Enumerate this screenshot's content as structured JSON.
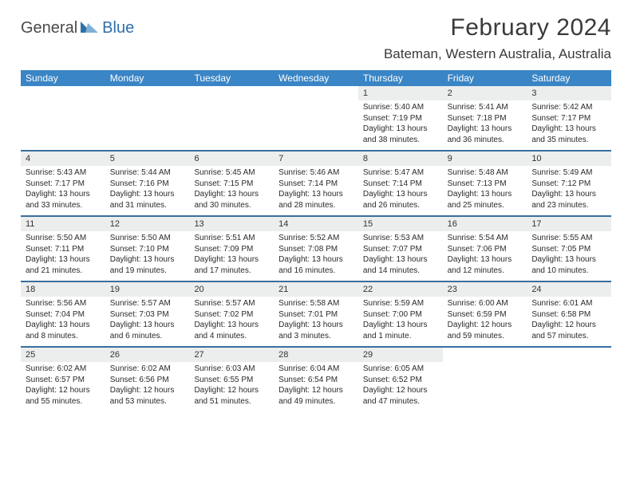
{
  "logo": {
    "text1": "General",
    "text2": "Blue"
  },
  "title": "February 2024",
  "location": "Bateman, Western Australia, Australia",
  "colors": {
    "header_bg": "#3a85c6",
    "header_text": "#ffffff",
    "daynum_bg": "#eceded",
    "week_border": "#3a6fa0",
    "logo_blue": "#2f6fa8"
  },
  "day_names": [
    "Sunday",
    "Monday",
    "Tuesday",
    "Wednesday",
    "Thursday",
    "Friday",
    "Saturday"
  ],
  "weeks": [
    [
      {
        "n": "",
        "sr": "",
        "ss": "",
        "dl": ""
      },
      {
        "n": "",
        "sr": "",
        "ss": "",
        "dl": ""
      },
      {
        "n": "",
        "sr": "",
        "ss": "",
        "dl": ""
      },
      {
        "n": "",
        "sr": "",
        "ss": "",
        "dl": ""
      },
      {
        "n": "1",
        "sr": "Sunrise: 5:40 AM",
        "ss": "Sunset: 7:19 PM",
        "dl": "Daylight: 13 hours and 38 minutes."
      },
      {
        "n": "2",
        "sr": "Sunrise: 5:41 AM",
        "ss": "Sunset: 7:18 PM",
        "dl": "Daylight: 13 hours and 36 minutes."
      },
      {
        "n": "3",
        "sr": "Sunrise: 5:42 AM",
        "ss": "Sunset: 7:17 PM",
        "dl": "Daylight: 13 hours and 35 minutes."
      }
    ],
    [
      {
        "n": "4",
        "sr": "Sunrise: 5:43 AM",
        "ss": "Sunset: 7:17 PM",
        "dl": "Daylight: 13 hours and 33 minutes."
      },
      {
        "n": "5",
        "sr": "Sunrise: 5:44 AM",
        "ss": "Sunset: 7:16 PM",
        "dl": "Daylight: 13 hours and 31 minutes."
      },
      {
        "n": "6",
        "sr": "Sunrise: 5:45 AM",
        "ss": "Sunset: 7:15 PM",
        "dl": "Daylight: 13 hours and 30 minutes."
      },
      {
        "n": "7",
        "sr": "Sunrise: 5:46 AM",
        "ss": "Sunset: 7:14 PM",
        "dl": "Daylight: 13 hours and 28 minutes."
      },
      {
        "n": "8",
        "sr": "Sunrise: 5:47 AM",
        "ss": "Sunset: 7:14 PM",
        "dl": "Daylight: 13 hours and 26 minutes."
      },
      {
        "n": "9",
        "sr": "Sunrise: 5:48 AM",
        "ss": "Sunset: 7:13 PM",
        "dl": "Daylight: 13 hours and 25 minutes."
      },
      {
        "n": "10",
        "sr": "Sunrise: 5:49 AM",
        "ss": "Sunset: 7:12 PM",
        "dl": "Daylight: 13 hours and 23 minutes."
      }
    ],
    [
      {
        "n": "11",
        "sr": "Sunrise: 5:50 AM",
        "ss": "Sunset: 7:11 PM",
        "dl": "Daylight: 13 hours and 21 minutes."
      },
      {
        "n": "12",
        "sr": "Sunrise: 5:50 AM",
        "ss": "Sunset: 7:10 PM",
        "dl": "Daylight: 13 hours and 19 minutes."
      },
      {
        "n": "13",
        "sr": "Sunrise: 5:51 AM",
        "ss": "Sunset: 7:09 PM",
        "dl": "Daylight: 13 hours and 17 minutes."
      },
      {
        "n": "14",
        "sr": "Sunrise: 5:52 AM",
        "ss": "Sunset: 7:08 PM",
        "dl": "Daylight: 13 hours and 16 minutes."
      },
      {
        "n": "15",
        "sr": "Sunrise: 5:53 AM",
        "ss": "Sunset: 7:07 PM",
        "dl": "Daylight: 13 hours and 14 minutes."
      },
      {
        "n": "16",
        "sr": "Sunrise: 5:54 AM",
        "ss": "Sunset: 7:06 PM",
        "dl": "Daylight: 13 hours and 12 minutes."
      },
      {
        "n": "17",
        "sr": "Sunrise: 5:55 AM",
        "ss": "Sunset: 7:05 PM",
        "dl": "Daylight: 13 hours and 10 minutes."
      }
    ],
    [
      {
        "n": "18",
        "sr": "Sunrise: 5:56 AM",
        "ss": "Sunset: 7:04 PM",
        "dl": "Daylight: 13 hours and 8 minutes."
      },
      {
        "n": "19",
        "sr": "Sunrise: 5:57 AM",
        "ss": "Sunset: 7:03 PM",
        "dl": "Daylight: 13 hours and 6 minutes."
      },
      {
        "n": "20",
        "sr": "Sunrise: 5:57 AM",
        "ss": "Sunset: 7:02 PM",
        "dl": "Daylight: 13 hours and 4 minutes."
      },
      {
        "n": "21",
        "sr": "Sunrise: 5:58 AM",
        "ss": "Sunset: 7:01 PM",
        "dl": "Daylight: 13 hours and 3 minutes."
      },
      {
        "n": "22",
        "sr": "Sunrise: 5:59 AM",
        "ss": "Sunset: 7:00 PM",
        "dl": "Daylight: 13 hours and 1 minute."
      },
      {
        "n": "23",
        "sr": "Sunrise: 6:00 AM",
        "ss": "Sunset: 6:59 PM",
        "dl": "Daylight: 12 hours and 59 minutes."
      },
      {
        "n": "24",
        "sr": "Sunrise: 6:01 AM",
        "ss": "Sunset: 6:58 PM",
        "dl": "Daylight: 12 hours and 57 minutes."
      }
    ],
    [
      {
        "n": "25",
        "sr": "Sunrise: 6:02 AM",
        "ss": "Sunset: 6:57 PM",
        "dl": "Daylight: 12 hours and 55 minutes."
      },
      {
        "n": "26",
        "sr": "Sunrise: 6:02 AM",
        "ss": "Sunset: 6:56 PM",
        "dl": "Daylight: 12 hours and 53 minutes."
      },
      {
        "n": "27",
        "sr": "Sunrise: 6:03 AM",
        "ss": "Sunset: 6:55 PM",
        "dl": "Daylight: 12 hours and 51 minutes."
      },
      {
        "n": "28",
        "sr": "Sunrise: 6:04 AM",
        "ss": "Sunset: 6:54 PM",
        "dl": "Daylight: 12 hours and 49 minutes."
      },
      {
        "n": "29",
        "sr": "Sunrise: 6:05 AM",
        "ss": "Sunset: 6:52 PM",
        "dl": "Daylight: 12 hours and 47 minutes."
      },
      {
        "n": "",
        "sr": "",
        "ss": "",
        "dl": ""
      },
      {
        "n": "",
        "sr": "",
        "ss": "",
        "dl": ""
      }
    ]
  ]
}
